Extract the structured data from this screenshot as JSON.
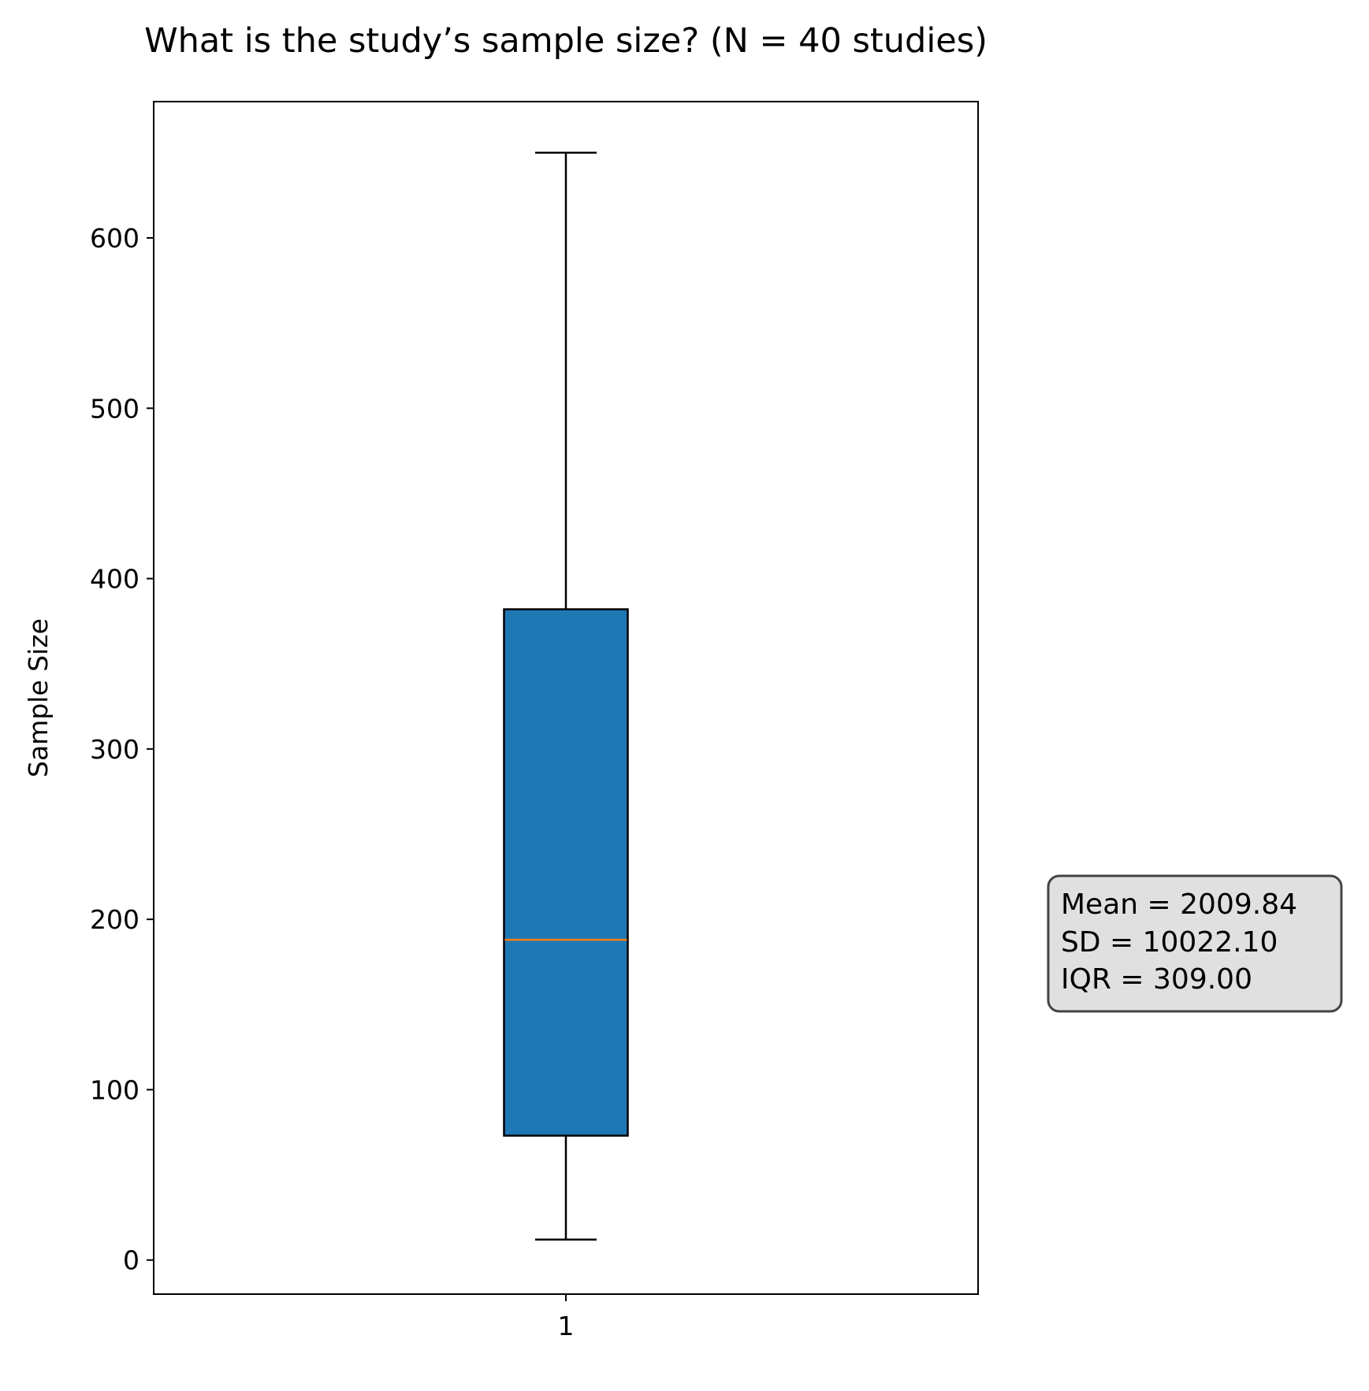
{
  "chart_data": {
    "type": "box",
    "title": "What is the study’s sample size? (N = 40 studies)",
    "xlabel": "",
    "ylabel": "Sample Size",
    "categories": [
      "1"
    ],
    "ylim": [
      -20,
      680
    ],
    "yticks": [
      0,
      100,
      200,
      300,
      400,
      500,
      600
    ],
    "ytick_labels": [
      "0",
      "100",
      "200",
      "300",
      "400",
      "500",
      "600"
    ],
    "boxes": [
      {
        "category": "1",
        "whisker_low": 12,
        "q1": 73,
        "median": 188,
        "q3": 382,
        "whisker_high": 650
      }
    ],
    "annotation": {
      "lines": [
        "Mean = 2009.84",
        "SD = 10022.10",
        "IQR = 309.00"
      ]
    },
    "colors": {
      "box_fill": "#1f77b4",
      "median_line": "#ff7f0e",
      "stats_box_fill": "#e0e0e0",
      "stats_box_edge": "#444444"
    },
    "grid": false,
    "legend": "none"
  }
}
